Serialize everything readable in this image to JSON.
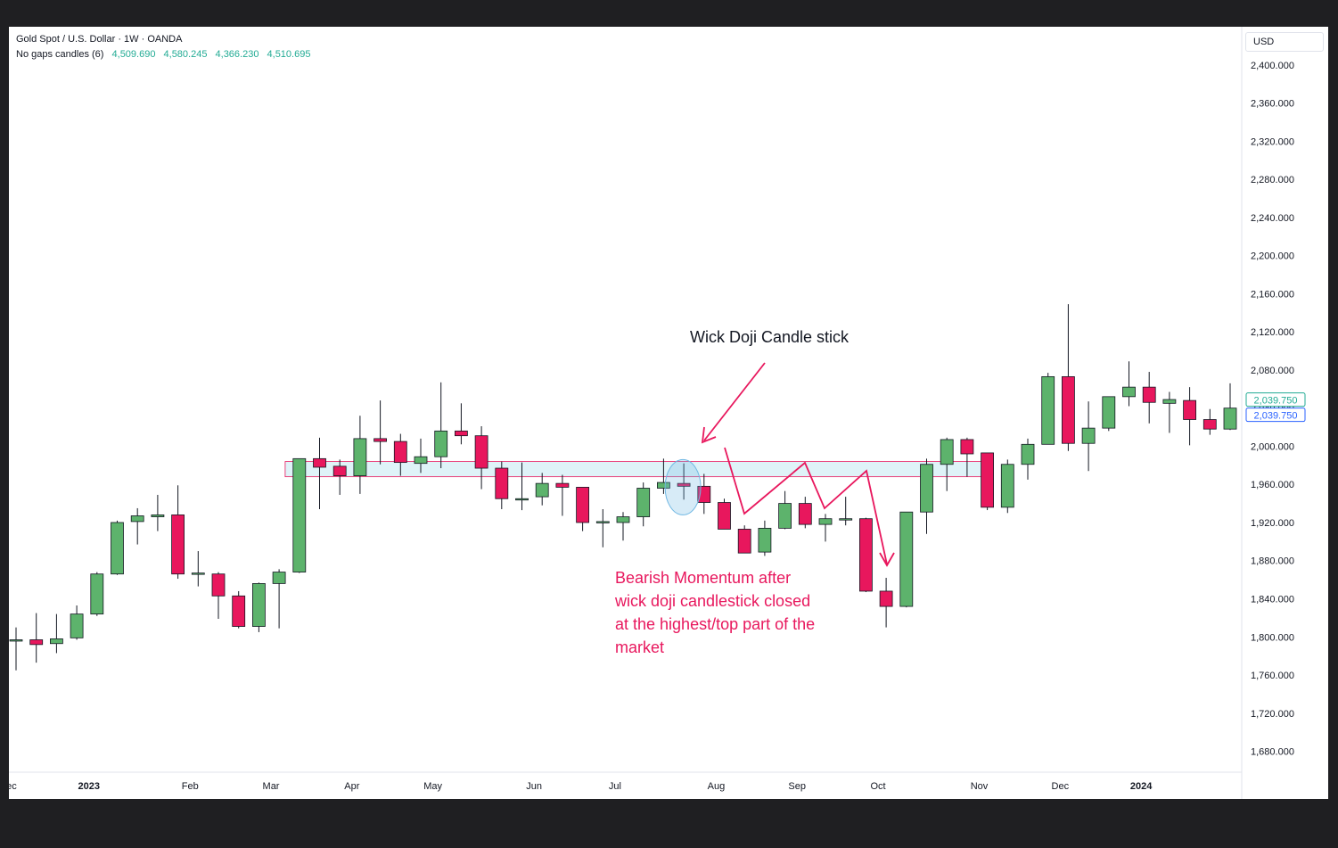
{
  "header": {
    "symbol": "Gold Spot / U.S. Dollar · 1W · OANDA",
    "indicator_name": "No gaps candles (6)",
    "indicator_values": [
      "4,509.690",
      "4,580.245",
      "4,366.230",
      "4,510.695"
    ],
    "currency": "USD"
  },
  "colors": {
    "up": "#5db36c",
    "down": "#e8175d",
    "zone_fill": "#dff3f8",
    "zone_stroke": "#e8175d",
    "annotation": "#e8175d",
    "doji_circle": "#6fb7e3",
    "price_label_green": "#22ab94",
    "price_label_blue": "#2962ff"
  },
  "chart_data": {
    "type": "candlestick",
    "title": "Gold Spot / U.S. Dollar · 1W · OANDA",
    "ylim": [
      1645,
      2440
    ],
    "y_ticks": [
      "2,400.000",
      "2,360.000",
      "2,320.000",
      "2,280.000",
      "2,240.000",
      "2,200.000",
      "2,160.000",
      "2,120.000",
      "2,080.000",
      "2,040.000",
      "2,000.000",
      "1,960.000",
      "1,920.000",
      "1,880.000",
      "1,840.000",
      "1,800.000",
      "1,760.000",
      "1,720.000",
      "1,680.000"
    ],
    "x_labels": [
      {
        "label": "Dec",
        "week": -0.4
      },
      {
        "label": "2023",
        "week": 3.6
      },
      {
        "label": "Feb",
        "week": 8.6
      },
      {
        "label": "Mar",
        "week": 12.6
      },
      {
        "label": "Apr",
        "week": 16.6
      },
      {
        "label": "May",
        "week": 20.6
      },
      {
        "label": "Jun",
        "week": 25.6
      },
      {
        "label": "Jul",
        "week": 29.6
      },
      {
        "label": "Aug",
        "week": 34.6
      },
      {
        "label": "Sep",
        "week": 38.6
      },
      {
        "label": "Oct",
        "week": 42.6
      },
      {
        "label": "Nov",
        "week": 47.6
      },
      {
        "label": "Dec",
        "week": 51.6
      },
      {
        "label": "2024",
        "week": 55.6
      }
    ],
    "last_price_labels": [
      "2,039.750",
      "2,039.750"
    ],
    "zone": {
      "from": 1968,
      "to": 1984,
      "start_week": 13.3
    },
    "candles": [
      {
        "o": 1797,
        "h": 1810,
        "l": 1765,
        "c": 1797
      },
      {
        "o": 1797,
        "h": 1825,
        "l": 1773,
        "c": 1792
      },
      {
        "o": 1793,
        "h": 1824,
        "l": 1783,
        "c": 1798
      },
      {
        "o": 1799,
        "h": 1833,
        "l": 1797,
        "c": 1824
      },
      {
        "o": 1824,
        "h": 1868,
        "l": 1822,
        "c": 1866
      },
      {
        "o": 1866,
        "h": 1922,
        "l": 1865,
        "c": 1920
      },
      {
        "o": 1921,
        "h": 1935,
        "l": 1897,
        "c": 1927
      },
      {
        "o": 1926,
        "h": 1949,
        "l": 1911,
        "c": 1928
      },
      {
        "o": 1928,
        "h": 1959,
        "l": 1861,
        "c": 1866
      },
      {
        "o": 1866,
        "h": 1890,
        "l": 1853,
        "c": 1867
      },
      {
        "o": 1866,
        "h": 1868,
        "l": 1819,
        "c": 1843
      },
      {
        "o": 1843,
        "h": 1848,
        "l": 1809,
        "c": 1811
      },
      {
        "o": 1811,
        "h": 1857,
        "l": 1805,
        "c": 1856
      },
      {
        "o": 1856,
        "h": 1871,
        "l": 1809,
        "c": 1868
      },
      {
        "o": 1868,
        "h": 1987,
        "l": 1867,
        "c": 1987
      },
      {
        "o": 1987,
        "h": 2009,
        "l": 1934,
        "c": 1978
      },
      {
        "o": 1979,
        "h": 1986,
        "l": 1949,
        "c": 1969
      },
      {
        "o": 1969,
        "h": 2032,
        "l": 1950,
        "c": 2008
      },
      {
        "o": 2008,
        "h": 2048,
        "l": 1981,
        "c": 2005
      },
      {
        "o": 2005,
        "h": 2013,
        "l": 1969,
        "c": 1983
      },
      {
        "o": 1982,
        "h": 2008,
        "l": 1972,
        "c": 1989
      },
      {
        "o": 1989,
        "h": 2067,
        "l": 1977,
        "c": 2016
      },
      {
        "o": 2016,
        "h": 2045,
        "l": 2002,
        "c": 2011
      },
      {
        "o": 2011,
        "h": 2021,
        "l": 1955,
        "c": 1977
      },
      {
        "o": 1977,
        "h": 1984,
        "l": 1934,
        "c": 1945
      },
      {
        "o": 1945,
        "h": 1983,
        "l": 1933,
        "c": 1945
      },
      {
        "o": 1947,
        "h": 1972,
        "l": 1938,
        "c": 1961
      },
      {
        "o": 1961,
        "h": 1970,
        "l": 1927,
        "c": 1957
      },
      {
        "o": 1957,
        "h": 1957,
        "l": 1911,
        "c": 1920
      },
      {
        "o": 1920,
        "h": 1934,
        "l": 1894,
        "c": 1921
      },
      {
        "o": 1920,
        "h": 1931,
        "l": 1901,
        "c": 1926
      },
      {
        "o": 1926,
        "h": 1962,
        "l": 1916,
        "c": 1956
      },
      {
        "o": 1956,
        "h": 1987,
        "l": 1950,
        "c": 1962
      },
      {
        "o": 1961,
        "h": 1982,
        "l": 1944,
        "c": 1958
      },
      {
        "o": 1958,
        "h": 1971,
        "l": 1929,
        "c": 1941
      },
      {
        "o": 1941,
        "h": 1945,
        "l": 1913,
        "c": 1913
      },
      {
        "o": 1913,
        "h": 1917,
        "l": 1888,
        "c": 1888
      },
      {
        "o": 1889,
        "h": 1922,
        "l": 1885,
        "c": 1914
      },
      {
        "o": 1914,
        "h": 1953,
        "l": 1913,
        "c": 1940
      },
      {
        "o": 1940,
        "h": 1947,
        "l": 1914,
        "c": 1918
      },
      {
        "o": 1918,
        "h": 1929,
        "l": 1900,
        "c": 1924
      },
      {
        "o": 1924,
        "h": 1947,
        "l": 1917,
        "c": 1924
      },
      {
        "o": 1924,
        "h": 1925,
        "l": 1847,
        "c": 1848
      },
      {
        "o": 1848,
        "h": 1862,
        "l": 1810,
        "c": 1832
      },
      {
        "o": 1832,
        "h": 1931,
        "l": 1831,
        "c": 1931
      },
      {
        "o": 1931,
        "h": 1987,
        "l": 1908,
        "c": 1981
      },
      {
        "o": 1981,
        "h": 2009,
        "l": 1953,
        "c": 2007
      },
      {
        "o": 2007,
        "h": 2009,
        "l": 1968,
        "c": 1992
      },
      {
        "o": 1993,
        "h": 1993,
        "l": 1933,
        "c": 1936
      },
      {
        "o": 1936,
        "h": 1986,
        "l": 1930,
        "c": 1981
      },
      {
        "o": 1981,
        "h": 2008,
        "l": 1965,
        "c": 2002
      },
      {
        "o": 2002,
        "h": 2077,
        "l": 2002,
        "c": 2073
      },
      {
        "o": 2073,
        "h": 2149,
        "l": 1995,
        "c": 2003
      },
      {
        "o": 2003,
        "h": 2047,
        "l": 1974,
        "c": 2019
      },
      {
        "o": 2019,
        "h": 2052,
        "l": 2016,
        "c": 2052
      },
      {
        "o": 2052,
        "h": 2089,
        "l": 2042,
        "c": 2062
      },
      {
        "o": 2062,
        "h": 2078,
        "l": 2024,
        "c": 2046
      },
      {
        "o": 2045,
        "h": 2057,
        "l": 2014,
        "c": 2049
      },
      {
        "o": 2048,
        "h": 2062,
        "l": 2001,
        "c": 2028
      },
      {
        "o": 2028,
        "h": 2039,
        "l": 2012,
        "c": 2018
      },
      {
        "o": 2018,
        "h": 2066,
        "l": 2017,
        "c": 2040
      }
    ]
  },
  "annotations": {
    "doji_label": "Wick Doji Candle stick",
    "bearish_lines": [
      "Bearish Momentum after",
      "wick doji candlestick closed",
      "at the highest/top part of the",
      "market"
    ]
  }
}
